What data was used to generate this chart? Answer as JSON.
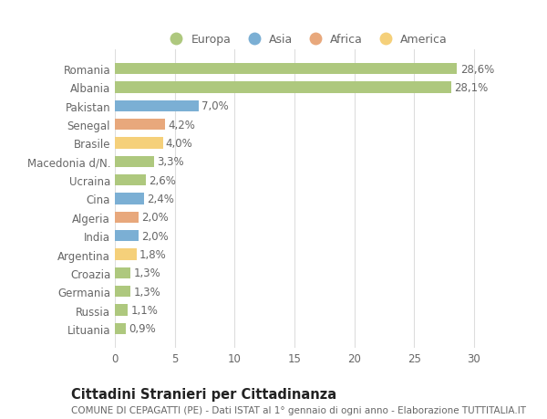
{
  "countries": [
    "Romania",
    "Albania",
    "Pakistan",
    "Senegal",
    "Brasile",
    "Macedonia d/N.",
    "Ucraina",
    "Cina",
    "Algeria",
    "India",
    "Argentina",
    "Croazia",
    "Germania",
    "Russia",
    "Lituania"
  ],
  "values": [
    28.6,
    28.1,
    7.0,
    4.2,
    4.0,
    3.3,
    2.6,
    2.4,
    2.0,
    2.0,
    1.8,
    1.3,
    1.3,
    1.1,
    0.9
  ],
  "labels": [
    "28,6%",
    "28,1%",
    "7,0%",
    "4,2%",
    "4,0%",
    "3,3%",
    "2,6%",
    "2,4%",
    "2,0%",
    "2,0%",
    "1,8%",
    "1,3%",
    "1,3%",
    "1,1%",
    "0,9%"
  ],
  "colors": [
    "#aec87e",
    "#aec87e",
    "#7bafd4",
    "#e8a87c",
    "#f5d07a",
    "#aec87e",
    "#aec87e",
    "#7bafd4",
    "#e8a87c",
    "#7bafd4",
    "#f5d07a",
    "#aec87e",
    "#aec87e",
    "#aec87e",
    "#aec87e"
  ],
  "legend_labels": [
    "Europa",
    "Asia",
    "Africa",
    "America"
  ],
  "legend_colors": [
    "#aec87e",
    "#7bafd4",
    "#e8a87c",
    "#f5d07a"
  ],
  "title": "Cittadini Stranieri per Cittadinanza",
  "subtitle": "COMUNE DI CEPAGATTI (PE) - Dati ISTAT al 1° gennaio di ogni anno - Elaborazione TUTTITALIA.IT",
  "xlim": [
    0,
    32
  ],
  "xticks": [
    0,
    5,
    10,
    15,
    20,
    25,
    30
  ],
  "background_color": "#ffffff",
  "plot_bg_color": "#ffffff",
  "grid_color": "#dddddd",
  "bar_height": 0.6,
  "label_fontsize": 8.5,
  "tick_fontsize": 8.5,
  "title_fontsize": 10.5,
  "subtitle_fontsize": 7.5
}
